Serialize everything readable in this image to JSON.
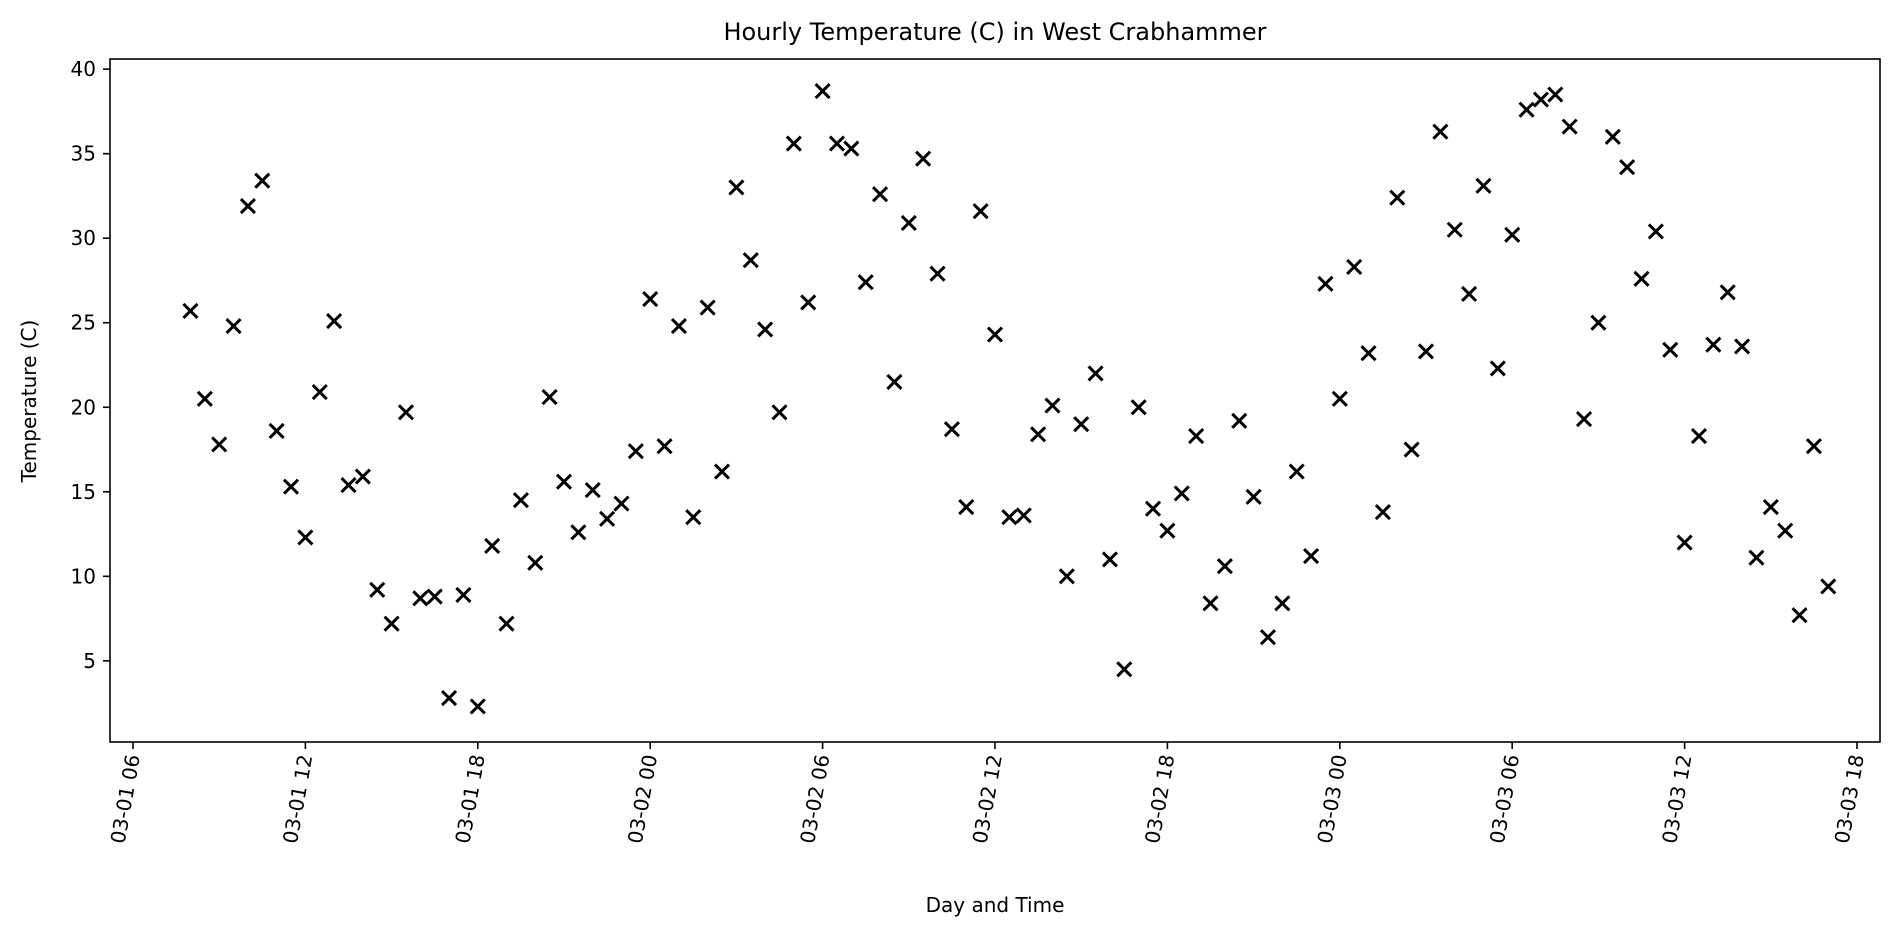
{
  "chart_data": {
    "type": "scatter",
    "title": "Hourly Temperature (C) in West Crabhammer",
    "xlabel": "Day and Time",
    "ylabel": "Temperature (C)",
    "marker": "x",
    "marker_color": "#000000",
    "grid": false,
    "xlim": [
      "2023-03-01 05:12",
      "2023-03-03 18:48"
    ],
    "ylim": [
      0.2,
      40.6
    ],
    "x_ticks": [
      "2023-03-01 06:00",
      "2023-03-01 12:00",
      "2023-03-01 18:00",
      "2023-03-02 00:00",
      "2023-03-02 06:00",
      "2023-03-02 12:00",
      "2023-03-02 18:00",
      "2023-03-03 00:00",
      "2023-03-03 06:00",
      "2023-03-03 12:00",
      "2023-03-03 18:00"
    ],
    "x_tick_labels": [
      "03-01 06",
      "03-01 12",
      "03-01 18",
      "03-02 00",
      "03-02 06",
      "03-02 12",
      "03-02 18",
      "03-03 00",
      "03-03 06",
      "03-03 12",
      "03-03 18"
    ],
    "y_ticks": [
      5,
      10,
      15,
      20,
      25,
      30,
      35,
      40
    ],
    "series": [
      {
        "x": [
          "2023-03-01 08:00",
          "2023-03-01 08:30",
          "2023-03-01 09:00",
          "2023-03-01 09:30",
          "2023-03-01 10:00",
          "2023-03-01 10:30",
          "2023-03-01 11:00",
          "2023-03-01 11:30",
          "2023-03-01 12:00",
          "2023-03-01 12:30",
          "2023-03-01 13:00",
          "2023-03-01 13:30",
          "2023-03-01 14:00",
          "2023-03-01 14:30",
          "2023-03-01 15:00",
          "2023-03-01 15:30",
          "2023-03-01 16:00",
          "2023-03-01 16:30",
          "2023-03-01 17:00",
          "2023-03-01 17:30",
          "2023-03-01 18:00",
          "2023-03-01 18:30",
          "2023-03-01 19:00",
          "2023-03-01 19:30",
          "2023-03-01 20:00",
          "2023-03-01 20:30",
          "2023-03-01 21:00",
          "2023-03-01 21:30",
          "2023-03-01 22:00",
          "2023-03-01 22:30",
          "2023-03-01 23:00",
          "2023-03-01 23:30",
          "2023-03-02 00:00",
          "2023-03-02 00:30",
          "2023-03-02 01:00",
          "2023-03-02 01:30",
          "2023-03-02 02:00",
          "2023-03-02 02:30",
          "2023-03-02 03:00",
          "2023-03-02 03:30",
          "2023-03-02 04:00",
          "2023-03-02 04:30",
          "2023-03-02 05:00",
          "2023-03-02 05:30",
          "2023-03-02 06:00",
          "2023-03-02 06:30",
          "2023-03-02 07:00",
          "2023-03-02 07:30",
          "2023-03-02 08:00",
          "2023-03-02 08:30",
          "2023-03-02 09:00",
          "2023-03-02 09:30",
          "2023-03-02 10:00",
          "2023-03-02 10:30",
          "2023-03-02 11:00",
          "2023-03-02 11:30",
          "2023-03-02 12:00",
          "2023-03-02 12:30",
          "2023-03-02 13:00",
          "2023-03-02 13:30",
          "2023-03-02 14:00",
          "2023-03-02 14:30",
          "2023-03-02 15:00",
          "2023-03-02 15:30",
          "2023-03-02 16:00",
          "2023-03-02 16:30",
          "2023-03-02 17:00",
          "2023-03-02 17:30",
          "2023-03-02 18:00",
          "2023-03-02 18:30",
          "2023-03-02 19:00",
          "2023-03-02 19:30",
          "2023-03-02 20:00",
          "2023-03-02 20:30",
          "2023-03-02 21:00",
          "2023-03-02 21:30",
          "2023-03-02 22:00",
          "2023-03-02 22:30",
          "2023-03-02 23:00",
          "2023-03-02 23:30",
          "2023-03-03 00:00",
          "2023-03-03 00:30",
          "2023-03-03 01:00",
          "2023-03-03 01:30",
          "2023-03-03 02:00",
          "2023-03-03 02:30",
          "2023-03-03 03:00",
          "2023-03-03 03:30",
          "2023-03-03 04:00",
          "2023-03-03 04:30",
          "2023-03-03 05:00",
          "2023-03-03 05:30",
          "2023-03-03 06:00",
          "2023-03-03 06:30",
          "2023-03-03 07:00",
          "2023-03-03 07:30",
          "2023-03-03 08:00",
          "2023-03-03 08:30",
          "2023-03-03 09:00",
          "2023-03-03 09:30",
          "2023-03-03 10:00",
          "2023-03-03 10:30",
          "2023-03-03 11:00",
          "2023-03-03 11:30",
          "2023-03-03 12:00",
          "2023-03-03 12:30",
          "2023-03-03 13:00",
          "2023-03-03 13:30",
          "2023-03-03 14:00",
          "2023-03-03 14:30",
          "2023-03-03 15:00",
          "2023-03-03 15:30",
          "2023-03-03 16:00",
          "2023-03-03 16:30",
          "2023-03-03 17:00"
        ],
        "y": [
          25.7,
          20.5,
          17.8,
          24.8,
          31.9,
          33.4,
          18.6,
          15.3,
          12.3,
          20.9,
          25.1,
          15.4,
          15.9,
          9.2,
          7.2,
          19.7,
          8.7,
          8.8,
          2.8,
          8.9,
          2.3,
          11.8,
          7.2,
          14.5,
          10.8,
          20.6,
          15.6,
          12.6,
          15.1,
          13.4,
          14.3,
          17.4,
          26.4,
          17.7,
          24.8,
          13.5,
          25.9,
          16.2,
          33.0,
          28.7,
          24.6,
          19.7,
          35.6,
          26.2,
          38.7,
          35.6,
          35.3,
          27.4,
          32.6,
          21.5,
          30.9,
          34.7,
          27.9,
          18.7,
          14.1,
          31.6,
          24.3,
          13.5,
          13.6,
          18.4,
          20.1,
          10.0,
          19.0,
          22.0,
          11.0,
          4.5,
          20.0,
          14.0,
          12.7,
          14.9,
          18.3,
          8.4,
          10.6,
          19.2,
          14.7,
          6.4,
          8.4,
          16.2,
          11.2,
          27.3,
          20.5,
          28.3,
          23.2,
          13.8,
          32.4,
          17.5,
          23.3,
          36.3,
          30.5,
          26.7,
          33.1,
          22.3,
          30.2,
          37.6,
          38.2,
          38.5,
          36.6,
          19.3,
          25.0,
          36.0,
          34.2,
          27.6,
          30.4,
          23.4,
          12.0,
          18.3,
          23.7,
          26.8,
          23.6,
          11.1,
          14.1,
          12.7,
          7.7,
          17.7,
          9.4
        ]
      }
    ]
  }
}
